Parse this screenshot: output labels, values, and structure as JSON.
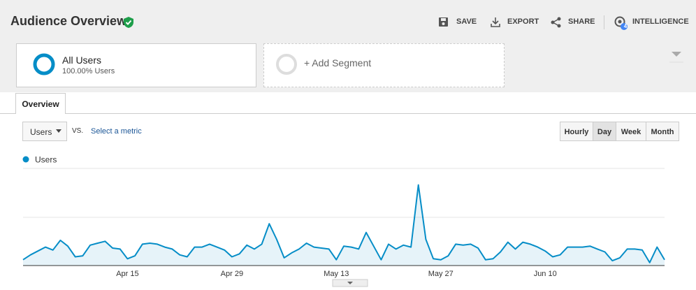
{
  "header": {
    "title": "Audience Overview",
    "actions": [
      "SAVE",
      "EXPORT",
      "SHARE",
      "INTELLIGENCE"
    ],
    "intelligence_badge": "4"
  },
  "segments": {
    "active": {
      "name": "All Users",
      "detail": "100.00% Users"
    },
    "add": "+ Add Segment"
  },
  "tabs": [
    "Overview"
  ],
  "controls": {
    "metric": "Users",
    "vs": "VS.",
    "select_metric": "Select a metric",
    "granularity": [
      "Hourly",
      "Day",
      "Week",
      "Month"
    ],
    "selected": "Day"
  },
  "chart_data": {
    "type": "line",
    "categories": [
      null,
      null,
      null,
      null,
      null,
      null,
      null,
      null,
      null,
      null,
      null,
      null,
      null,
      null,
      "Apr 15",
      null,
      null,
      null,
      null,
      null,
      null,
      null,
      null,
      null,
      null,
      null,
      null,
      null,
      "Apr 29",
      null,
      null,
      null,
      null,
      null,
      null,
      null,
      null,
      null,
      null,
      null,
      null,
      null,
      "May 13",
      null,
      null,
      null,
      null,
      null,
      null,
      null,
      null,
      null,
      null,
      null,
      null,
      null,
      "May 27",
      null,
      null,
      null,
      null,
      null,
      null,
      null,
      null,
      null,
      null,
      null,
      null,
      null,
      "Jun 10",
      null,
      null,
      null,
      null,
      null,
      null,
      null,
      null,
      null,
      null,
      null,
      null,
      null,
      null,
      null,
      null
    ],
    "series": [
      {
        "name": "Users",
        "color": "#058dc7",
        "values": [
          6,
          11,
          15,
          19,
          16,
          26,
          20,
          9,
          10,
          21,
          23,
          25,
          18,
          17,
          7,
          10,
          22,
          23,
          22,
          19,
          17,
          11,
          9,
          19,
          19,
          22,
          19,
          16,
          9,
          12,
          21,
          17,
          22,
          43,
          27,
          8,
          13,
          17,
          23,
          19,
          18,
          17,
          6,
          20,
          19,
          17,
          34,
          20,
          6,
          22,
          17,
          21,
          19,
          83,
          27,
          7,
          6,
          10,
          22,
          21,
          22,
          18,
          6,
          7,
          14,
          24,
          17,
          24,
          22,
          19,
          15,
          9,
          11,
          19,
          19,
          19,
          20,
          17,
          14,
          5,
          8,
          17,
          17,
          16,
          3,
          19,
          6
        ]
      }
    ],
    "ylim": [
      0,
      100
    ]
  }
}
